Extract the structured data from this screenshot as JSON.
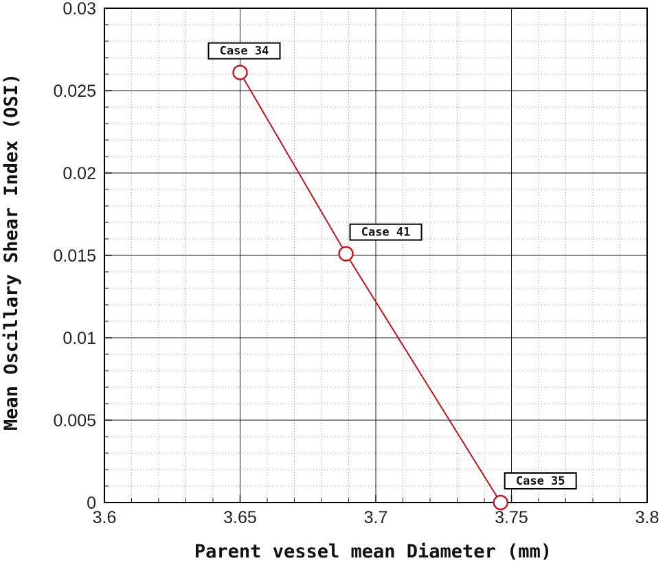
{
  "chart_data": {
    "type": "line",
    "xlabel": "Parent vessel mean Diameter (mm)",
    "ylabel": "Mean Oscillary Shear Index (OSI)",
    "xlim": [
      3.6,
      3.8
    ],
    "ylim": [
      0,
      0.03
    ],
    "x_ticks": [
      "3.6",
      "3.65",
      "3.7",
      "3.75",
      "3.8"
    ],
    "y_ticks": [
      "0",
      "0.005",
      "0.01",
      "0.015",
      "0.02",
      "0.025",
      "0.03"
    ],
    "grid": true,
    "minor_grid": true,
    "series": [
      {
        "color": "#c0121a",
        "marker": "open-circle",
        "points": [
          {
            "x": 3.65,
            "y": 0.0261,
            "label": "Case 34"
          },
          {
            "x": 3.689,
            "y": 0.0151,
            "label": "Case 41"
          },
          {
            "x": 3.746,
            "y": 0.0,
            "label": "Case 35"
          }
        ]
      }
    ]
  }
}
